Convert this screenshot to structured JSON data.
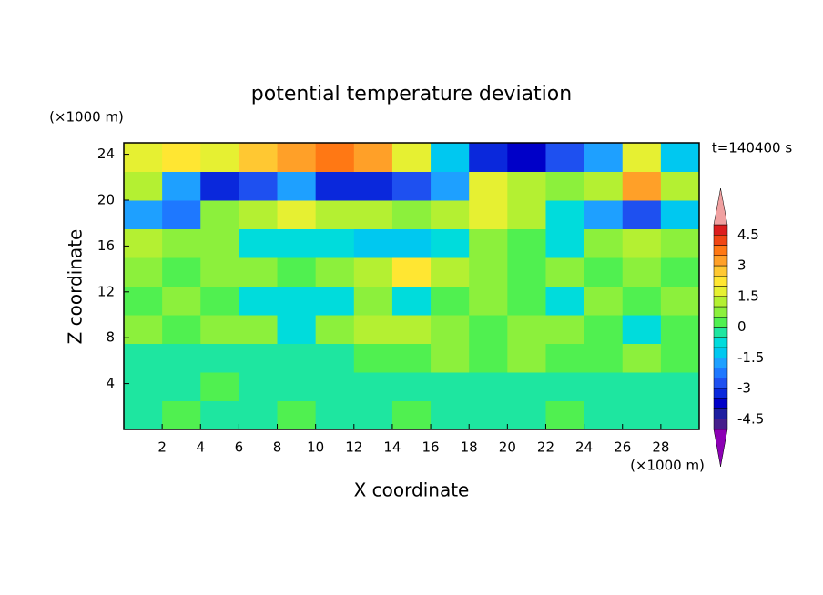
{
  "chart_data": {
    "type": "contour",
    "title": "potential temperature deviation",
    "x_label": "X coordinate",
    "y_label": "Z coordinate",
    "x_unit": "(×1000 m)",
    "y_unit": "(×1000 m)",
    "annotation": "t=140400 s",
    "xlim": [
      0,
      30
    ],
    "ylim": [
      0,
      25
    ],
    "xticks": [
      2,
      4,
      6,
      8,
      10,
      12,
      14,
      16,
      18,
      20,
      22,
      24,
      26,
      28
    ],
    "yticks": [
      4,
      8,
      12,
      16,
      20,
      24
    ],
    "x": [
      1,
      3,
      5,
      7,
      9,
      11,
      13,
      15,
      17,
      19,
      21,
      23,
      25,
      27,
      29
    ],
    "y": [
      1.25,
      3.75,
      6.25,
      8.75,
      11.25,
      13.75,
      16.25,
      18.75,
      21.25,
      23.75
    ],
    "z": [
      [
        -0.2,
        0.2,
        -0.2,
        -0.2,
        0.2,
        -0.2,
        -0.2,
        0.2,
        -0.2,
        -0.2,
        -0.2,
        0.2,
        -0.2,
        -0.2,
        -0.2
      ],
      [
        -0.2,
        -0.2,
        0.2,
        -0.2,
        -0.2,
        -0.2,
        -0.2,
        -0.2,
        -0.2,
        -0.2,
        -0.2,
        -0.2,
        -0.2,
        -0.2,
        -0.2
      ],
      [
        -0.2,
        -0.2,
        -0.2,
        -0.2,
        -0.2,
        -0.2,
        0.2,
        0.2,
        0.6,
        0.2,
        0.6,
        0.2,
        0.2,
        0.6,
        0.2
      ],
      [
        0.6,
        0.2,
        0.6,
        0.6,
        -0.6,
        0.6,
        1.2,
        1.2,
        0.6,
        0.2,
        0.6,
        0.6,
        0.2,
        -0.6,
        0.2
      ],
      [
        0.2,
        0.6,
        0.2,
        -0.6,
        -0.6,
        -0.6,
        0.6,
        -0.6,
        0.2,
        0.6,
        0.2,
        -0.6,
        0.6,
        0.2,
        0.6
      ],
      [
        0.6,
        0.2,
        0.6,
        0.6,
        0.2,
        0.6,
        1.2,
        2.2,
        1.2,
        0.6,
        0.2,
        0.6,
        0.2,
        0.6,
        0.2
      ],
      [
        1.2,
        0.6,
        0.6,
        -0.6,
        -0.6,
        -0.6,
        -1.2,
        -1.2,
        -0.6,
        0.6,
        0.2,
        -0.6,
        0.6,
        1.2,
        0.6
      ],
      [
        -1.8,
        -2.2,
        0.6,
        1.2,
        1.8,
        1.2,
        1.2,
        0.6,
        1.2,
        1.8,
        1.2,
        -0.6,
        -1.8,
        -2.6,
        -1.2
      ],
      [
        1.2,
        -1.8,
        -3.2,
        -2.6,
        -1.8,
        -3.2,
        -3.2,
        -2.6,
        -1.8,
        1.8,
        1.2,
        0.6,
        1.2,
        3.2,
        1.2
      ],
      [
        1.8,
        2.2,
        1.8,
        2.6,
        3.4,
        3.8,
        3.4,
        1.8,
        -1.2,
        -3.2,
        -3.8,
        -2.6,
        -1.8,
        1.8,
        -1.2
      ]
    ],
    "levels": [
      -5,
      -4.5,
      -4,
      -3.5,
      -3,
      -2.5,
      -2,
      -1.5,
      -1,
      -0.5,
      0,
      0.5,
      1,
      1.5,
      2,
      2.5,
      3,
      3.5,
      4,
      4.5,
      5
    ],
    "colors": [
      "#461e8c",
      "#1e1ea0",
      "#0000c8",
      "#0a28dc",
      "#1e50f0",
      "#1e78ff",
      "#1ea0ff",
      "#00c8f0",
      "#00dcdc",
      "#1ee6a0",
      "#50f050",
      "#8cf03c",
      "#b4f032",
      "#e6f032",
      "#ffe632",
      "#ffc832",
      "#ffa028",
      "#ff7814",
      "#f04614",
      "#dc1e1e"
    ],
    "under_color": "#8c00b4",
    "over_color": "#f0a0a0",
    "colorbar_ticks": [
      -4.5,
      -3,
      -1.5,
      0,
      1.5,
      3,
      4.5
    ]
  }
}
